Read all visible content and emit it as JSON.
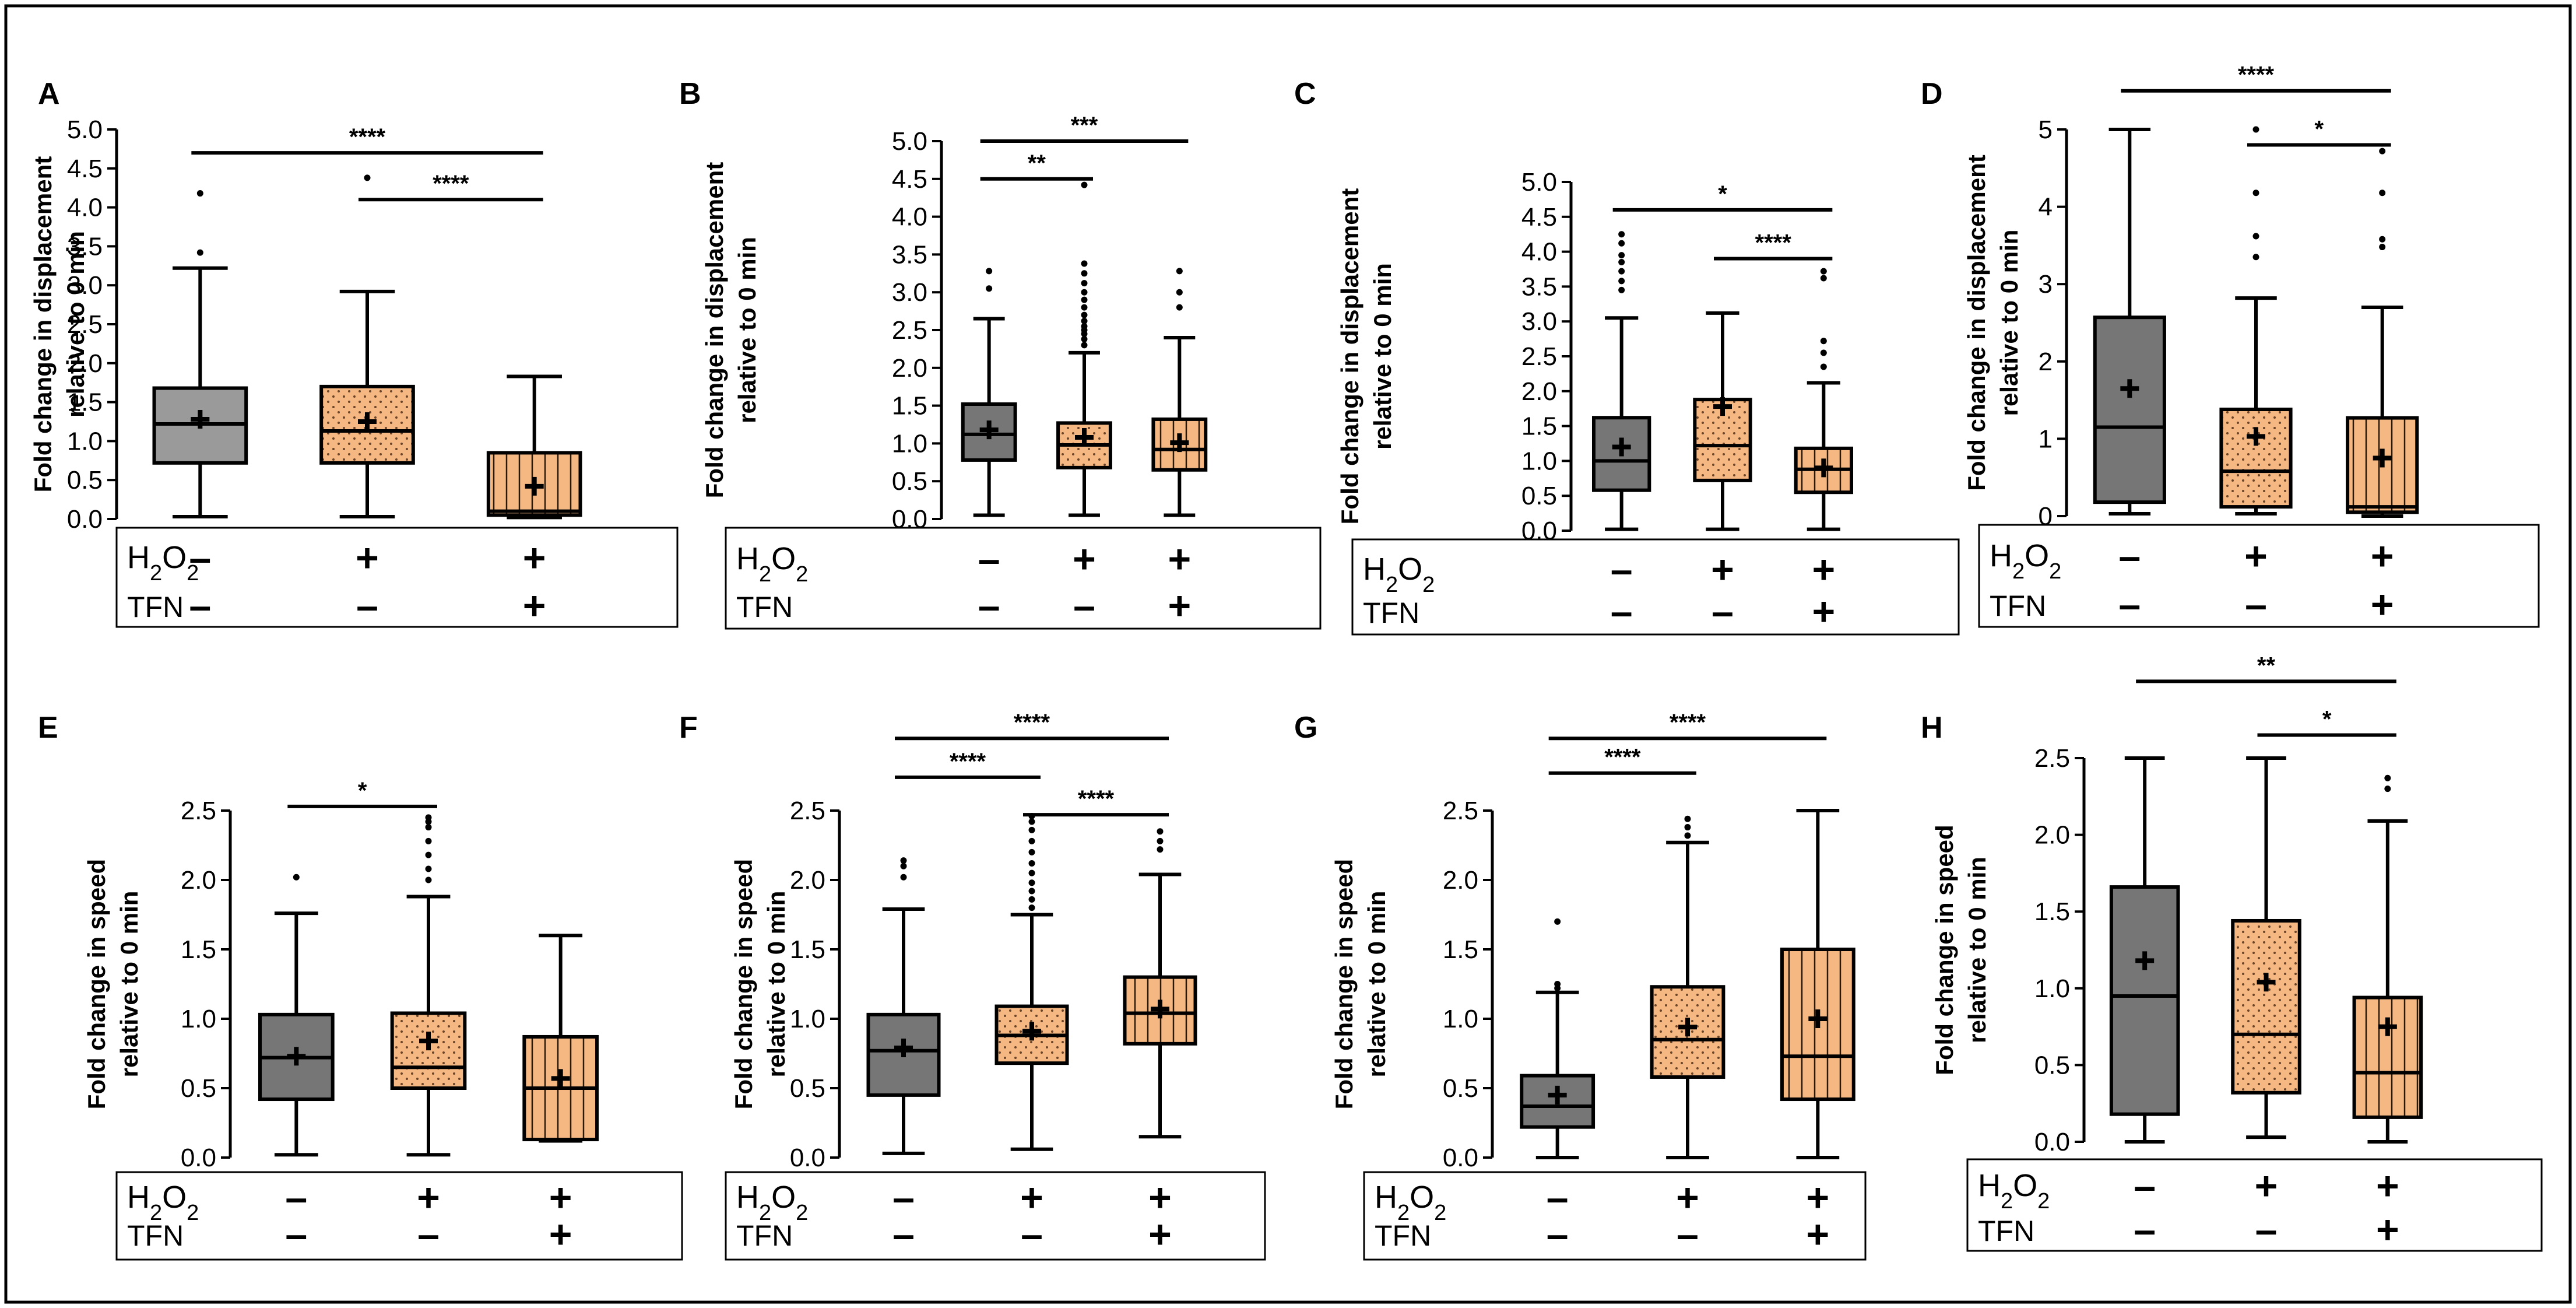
{
  "figure": {
    "colors": {
      "control": "#767676",
      "control_light": "#9a9a9a",
      "treated": "#f5b882",
      "dots": "#5a3a20"
    }
  },
  "chart_data": [
    {
      "panel": "A",
      "type": "box",
      "ylabel": [
        "Fold change in displacement",
        "relative to 0 min"
      ],
      "ylim": [
        0,
        5.0
      ],
      "yticks": [
        "0.0",
        "0.5",
        "1.0",
        "1.5",
        "2.0",
        "2.5",
        "3.0",
        "3.5",
        "4.0",
        "4.5",
        "5.0"
      ],
      "row_labels": [
        "H2O2",
        "TFN"
      ],
      "groups": [
        {
          "fill": "control_light",
          "pattern": "none",
          "h2o2": "–",
          "tfn": "–",
          "wmin": 0.03,
          "q1": 0.72,
          "median": 1.22,
          "q3": 1.68,
          "wmax": 3.22,
          "mean": 1.28,
          "outliers": [
            3.42,
            4.18
          ]
        },
        {
          "fill": "treated",
          "pattern": "dots",
          "h2o2": "+",
          "tfn": "–",
          "wmin": 0.03,
          "q1": 0.72,
          "median": 1.13,
          "q3": 1.7,
          "wmax": 2.92,
          "mean": 1.25,
          "outliers": [
            4.38
          ]
        },
        {
          "fill": "treated",
          "pattern": "vlines",
          "h2o2": "+",
          "tfn": "+",
          "wmin": 0.02,
          "q1": 0.05,
          "median": 0.1,
          "q3": 0.85,
          "wmax": 1.83,
          "mean": 0.42,
          "outliers": []
        }
      ],
      "significance": [
        {
          "from": 0,
          "to": 2,
          "y": 4.7,
          "label": "****"
        },
        {
          "from": 1,
          "to": 2,
          "y": 4.1,
          "label": "****"
        }
      ]
    },
    {
      "panel": "B",
      "type": "box",
      "ylabel": [
        "Fold change in displacement",
        "relative to 0 min"
      ],
      "ylim": [
        0,
        5.0
      ],
      "yticks": [
        "0.0",
        "0.5",
        "1.0",
        "1.5",
        "2.0",
        "2.5",
        "3.0",
        "3.5",
        "4.0",
        "4.5",
        "5.0"
      ],
      "row_labels": [
        "H2O2",
        "TFN"
      ],
      "groups": [
        {
          "fill": "control",
          "pattern": "none",
          "h2o2": "–",
          "tfn": "–",
          "wmin": 0.05,
          "q1": 0.78,
          "median": 1.12,
          "q3": 1.52,
          "wmax": 2.65,
          "mean": 1.18,
          "outliers": [
            3.05,
            3.28
          ]
        },
        {
          "fill": "treated",
          "pattern": "dots",
          "h2o2": "+",
          "tfn": "–",
          "wmin": 0.05,
          "q1": 0.68,
          "median": 0.98,
          "q3": 1.27,
          "wmax": 2.2,
          "mean": 1.08,
          "outliers": [
            2.3,
            2.38,
            2.45,
            2.5,
            2.55,
            2.62,
            2.7,
            2.8,
            2.9,
            3.0,
            3.12,
            3.25,
            3.38,
            4.42
          ]
        },
        {
          "fill": "treated",
          "pattern": "vlines",
          "h2o2": "+",
          "tfn": "+",
          "wmin": 0.05,
          "q1": 0.65,
          "median": 0.92,
          "q3": 1.32,
          "wmax": 2.4,
          "mean": 1.01,
          "outliers": [
            2.8,
            3.0,
            3.28
          ]
        }
      ],
      "significance": [
        {
          "from": 0,
          "to": 1,
          "y": 4.5,
          "label": "**"
        },
        {
          "from": 0,
          "to": 2,
          "y": 5.0,
          "label": "***"
        }
      ]
    },
    {
      "panel": "C",
      "type": "box",
      "ylabel": [
        "Fold change in displacement",
        "relative to 0 min"
      ],
      "ylim": [
        0,
        5.0
      ],
      "yticks": [
        "0.0",
        "0.5",
        "1.0",
        "1.5",
        "2.0",
        "2.5",
        "3.0",
        "3.5",
        "4.0",
        "4.5",
        "5.0"
      ],
      "row_labels": [
        "H2O2",
        "TFN"
      ],
      "groups": [
        {
          "fill": "control",
          "pattern": "none",
          "h2o2": "–",
          "tfn": "–",
          "wmin": 0.02,
          "q1": 0.58,
          "median": 1.0,
          "q3": 1.62,
          "wmax": 3.05,
          "mean": 1.2,
          "outliers": [
            3.45,
            3.58,
            3.72,
            3.85,
            3.95,
            4.12,
            4.25
          ]
        },
        {
          "fill": "treated",
          "pattern": "dots",
          "h2o2": "+",
          "tfn": "–",
          "wmin": 0.02,
          "q1": 0.72,
          "median": 1.22,
          "q3": 1.88,
          "wmax": 3.12,
          "mean": 1.78,
          "outliers": []
        },
        {
          "fill": "treated",
          "pattern": "vlines",
          "h2o2": "+",
          "tfn": "+",
          "wmin": 0.02,
          "q1": 0.55,
          "median": 0.88,
          "q3": 1.18,
          "wmax": 2.12,
          "mean": 0.9,
          "outliers": [
            2.35,
            2.55,
            2.72,
            3.62,
            3.72
          ]
        }
      ],
      "significance": [
        {
          "from": 0,
          "to": 2,
          "y": 4.6,
          "label": "*"
        },
        {
          "from": 1,
          "to": 2,
          "y": 3.9,
          "label": "****"
        }
      ]
    },
    {
      "panel": "D",
      "type": "box",
      "ylabel": [
        "Fold change in displacement",
        "relative to 0 min"
      ],
      "ylim": [
        0,
        5
      ],
      "yticks": [
        "0",
        "1",
        "2",
        "3",
        "4",
        "5"
      ],
      "row_labels": [
        "H2O2",
        "TFN"
      ],
      "groups": [
        {
          "fill": "control",
          "pattern": "none",
          "h2o2": "–",
          "tfn": "–",
          "wmin": 0.03,
          "q1": 0.18,
          "median": 1.15,
          "q3": 2.57,
          "wmax": 5.0,
          "mean": 1.65,
          "outliers": []
        },
        {
          "fill": "treated",
          "pattern": "dots",
          "h2o2": "+",
          "tfn": "–",
          "wmin": 0.03,
          "q1": 0.12,
          "median": 0.58,
          "q3": 1.38,
          "wmax": 2.82,
          "mean": 1.03,
          "outliers": [
            3.35,
            3.62,
            4.18,
            5.0
          ]
        },
        {
          "fill": "treated",
          "pattern": "vlines",
          "h2o2": "+",
          "tfn": "+",
          "wmin": 0.0,
          "q1": 0.05,
          "median": 0.12,
          "q3": 1.27,
          "wmax": 2.7,
          "mean": 0.75,
          "outliers": [
            3.48,
            3.58,
            4.18,
            4.72
          ]
        }
      ],
      "significance": [
        {
          "from": 0,
          "to": 2,
          "y": 5.5,
          "label": "****"
        },
        {
          "from": 1,
          "to": 2,
          "y": 4.8,
          "label": "*"
        }
      ]
    },
    {
      "panel": "E",
      "type": "box",
      "ylabel": [
        "Fold change in speed",
        "relative to 0 min"
      ],
      "ylim": [
        0,
        2.5
      ],
      "yticks": [
        "0.0",
        "0.5",
        "1.0",
        "1.5",
        "2.0",
        "2.5"
      ],
      "row_labels": [
        "H2O2",
        "TFN"
      ],
      "groups": [
        {
          "fill": "control",
          "pattern": "none",
          "h2o2": "–",
          "tfn": "–",
          "wmin": 0.02,
          "q1": 0.42,
          "median": 0.72,
          "q3": 1.03,
          "wmax": 1.76,
          "mean": 0.73,
          "outliers": [
            2.02
          ]
        },
        {
          "fill": "treated",
          "pattern": "dots",
          "h2o2": "+",
          "tfn": "–",
          "wmin": 0.02,
          "q1": 0.5,
          "median": 0.65,
          "q3": 1.04,
          "wmax": 1.88,
          "mean": 0.84,
          "outliers": [
            2.0,
            2.08,
            2.18,
            2.28,
            2.38,
            2.42,
            2.45
          ]
        },
        {
          "fill": "treated",
          "pattern": "vlines",
          "h2o2": "+",
          "tfn": "+",
          "wmin": 0.12,
          "q1": 0.13,
          "median": 0.5,
          "q3": 0.87,
          "wmax": 1.6,
          "mean": 0.57,
          "outliers": []
        }
      ],
      "significance": [
        {
          "from": 0,
          "to": 1,
          "y": 2.53,
          "label": "*"
        }
      ]
    },
    {
      "panel": "F",
      "type": "box",
      "ylabel": [
        "Fold change in speed",
        "relative to 0 min"
      ],
      "ylim": [
        0,
        2.5
      ],
      "yticks": [
        "0.0",
        "0.5",
        "1.0",
        "1.5",
        "2.0",
        "2.5"
      ],
      "row_labels": [
        "H2O2",
        "TFN"
      ],
      "groups": [
        {
          "fill": "control",
          "pattern": "none",
          "h2o2": "–",
          "tfn": "–",
          "wmin": 0.03,
          "q1": 0.45,
          "median": 0.77,
          "q3": 1.03,
          "wmax": 1.79,
          "mean": 0.79,
          "outliers": [
            2.02,
            2.1,
            2.14
          ]
        },
        {
          "fill": "treated",
          "pattern": "dots",
          "h2o2": "+",
          "tfn": "–",
          "wmin": 0.06,
          "q1": 0.68,
          "median": 0.88,
          "q3": 1.09,
          "wmax": 1.75,
          "mean": 0.91,
          "outliers": [
            1.8,
            1.86,
            1.92,
            1.98,
            2.05,
            2.12,
            2.2,
            2.28,
            2.36,
            2.42,
            2.46
          ]
        },
        {
          "fill": "treated",
          "pattern": "vlines",
          "h2o2": "+",
          "tfn": "+",
          "wmin": 0.15,
          "q1": 0.82,
          "median": 1.04,
          "q3": 1.3,
          "wmax": 2.04,
          "mean": 1.07,
          "outliers": [
            2.22,
            2.28,
            2.35
          ]
        }
      ],
      "significance": [
        {
          "from": 0,
          "to": 1,
          "y": 2.74,
          "label": "****"
        },
        {
          "from": 1,
          "to": 2,
          "y": 2.47,
          "label": "****"
        },
        {
          "from": 0,
          "to": 2,
          "y": 3.02,
          "label": "****"
        }
      ]
    },
    {
      "panel": "G",
      "type": "box",
      "ylabel": [
        "Fold change in speed",
        "relative to 0 min"
      ],
      "ylim": [
        0,
        2.5
      ],
      "yticks": [
        "0.0",
        "0.5",
        "1.0",
        "1.5",
        "2.0",
        "2.5"
      ],
      "row_labels": [
        "H2O2",
        "TFN"
      ],
      "groups": [
        {
          "fill": "control",
          "pattern": "none",
          "h2o2": "–",
          "tfn": "–",
          "wmin": 0.0,
          "q1": 0.22,
          "median": 0.37,
          "q3": 0.59,
          "wmax": 1.19,
          "mean": 0.45,
          "outliers": [
            1.22,
            1.25,
            1.7
          ]
        },
        {
          "fill": "treated",
          "pattern": "dots",
          "h2o2": "+",
          "tfn": "–",
          "wmin": 0.0,
          "q1": 0.58,
          "median": 0.85,
          "q3": 1.23,
          "wmax": 2.27,
          "mean": 0.94,
          "outliers": [
            2.32,
            2.38,
            2.44
          ]
        },
        {
          "fill": "treated",
          "pattern": "vlines",
          "h2o2": "+",
          "tfn": "+",
          "wmin": 0.0,
          "q1": 0.42,
          "median": 0.73,
          "q3": 1.5,
          "wmax": 2.5,
          "mean": 1.0,
          "outliers": []
        }
      ],
      "significance": [
        {
          "from": 0,
          "to": 1,
          "y": 2.77,
          "label": "****"
        },
        {
          "from": 0,
          "to": 2,
          "y": 3.02,
          "label": "****"
        }
      ]
    },
    {
      "panel": "H",
      "type": "box",
      "ylabel": [
        "Fold change in speed",
        "relative to 0 min"
      ],
      "ylim": [
        0,
        2.5
      ],
      "yticks": [
        "0.0",
        "0.5",
        "1.0",
        "1.5",
        "2.0",
        "2.5"
      ],
      "row_labels": [
        "H2O2",
        "TFN"
      ],
      "groups": [
        {
          "fill": "control",
          "pattern": "none",
          "h2o2": "–",
          "tfn": "–",
          "wmin": 0.0,
          "q1": 0.18,
          "median": 0.95,
          "q3": 1.66,
          "wmax": 2.5,
          "mean": 1.18,
          "outliers": []
        },
        {
          "fill": "treated",
          "pattern": "dots",
          "h2o2": "+",
          "tfn": "–",
          "wmin": 0.03,
          "q1": 0.32,
          "median": 0.7,
          "q3": 1.44,
          "wmax": 2.5,
          "mean": 1.04,
          "outliers": []
        },
        {
          "fill": "treated",
          "pattern": "vlines",
          "h2o2": "+",
          "tfn": "+",
          "wmin": 0.0,
          "q1": 0.16,
          "median": 0.45,
          "q3": 0.94,
          "wmax": 2.09,
          "mean": 0.75,
          "outliers": [
            2.3,
            2.37
          ]
        }
      ],
      "significance": [
        {
          "from": 0,
          "to": 2,
          "y": 3.0,
          "label": "**"
        },
        {
          "from": 1,
          "to": 2,
          "y": 2.65,
          "label": "*"
        }
      ]
    }
  ]
}
